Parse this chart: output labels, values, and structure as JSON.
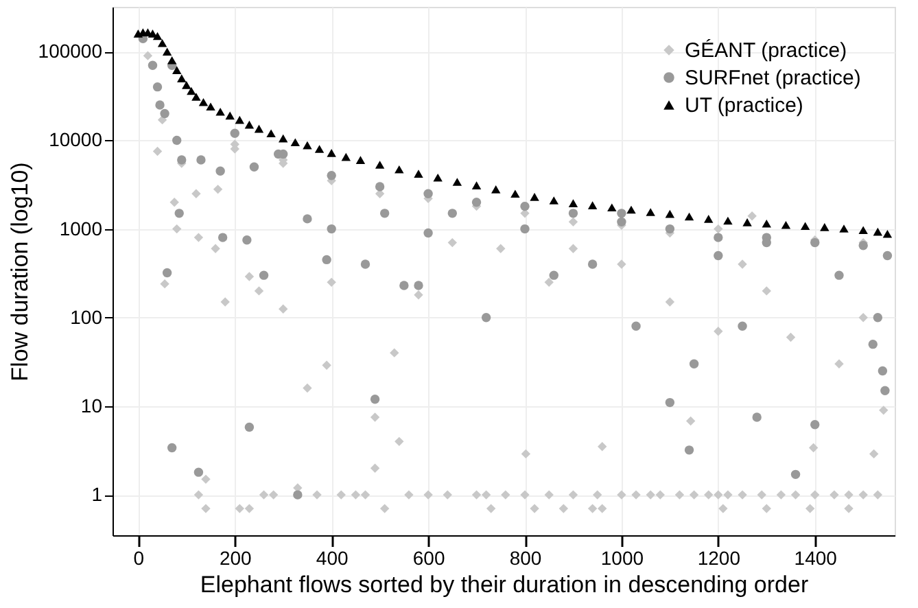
{
  "chart_data": {
    "type": "scatter",
    "xlabel": "Elephant flows sorted by their duration in descending order",
    "ylabel": "Flow duration (log10)",
    "log": "y",
    "grid": true,
    "legend": "top right",
    "xlim": [
      -53,
      1565
    ],
    "xticks": [
      0,
      200,
      400,
      600,
      800,
      1000,
      1200,
      1400
    ],
    "ylim": [
      0.35,
      320000
    ],
    "yticks": [
      1,
      10,
      100,
      1000,
      10000,
      100000
    ],
    "series": [
      {
        "name": "GÉANT (practice)",
        "color": "#c8c8c8",
        "marker": "diamond",
        "x": [
          20,
          40,
          50,
          55,
          75,
          80,
          90,
          120,
          125,
          125,
          140,
          140,
          160,
          165,
          180,
          200,
          210,
          230,
          230,
          250,
          260,
          280,
          300,
          300,
          330,
          350,
          370,
          390,
          400,
          420,
          450,
          470,
          490,
          490,
          510,
          530,
          540,
          560,
          580,
          600,
          640,
          650,
          700,
          720,
          730,
          750,
          760,
          800,
          802,
          820,
          850,
          850,
          880,
          900,
          900,
          940,
          950,
          960,
          960,
          1000,
          1000,
          1030,
          1060,
          1080,
          1100,
          1120,
          1143,
          1150,
          1180,
          1200,
          1200,
          1210,
          1220,
          1250,
          1250,
          1270,
          1290,
          1300,
          1300,
          1330,
          1350,
          1360,
          1390,
          1397,
          1400,
          1440,
          1450,
          1470,
          1470,
          1500,
          1500,
          1522,
          1530,
          1542,
          200,
          300,
          400,
          500,
          600,
          700,
          800,
          900,
          1000,
          1100,
          1200,
          1400,
          1500
        ],
        "values": [
          90000,
          7500,
          17000,
          240,
          2000,
          1000,
          5500,
          2500,
          800,
          1,
          0.7,
          1.5,
          600,
          2800,
          150,
          8000,
          0.7,
          0.7,
          290,
          200,
          1,
          1,
          125,
          5500,
          1.2,
          16,
          1,
          29,
          250,
          1,
          1,
          1,
          7.5,
          2,
          0.7,
          40,
          4,
          1,
          180,
          1,
          1,
          700,
          1,
          1,
          0.7,
          600,
          1,
          1,
          2.9,
          0.7,
          1,
          250,
          0.7,
          1,
          600,
          0.7,
          1,
          0.7,
          3.5,
          1,
          400,
          1,
          1,
          1,
          150,
          1,
          6.8,
          1,
          1,
          1,
          70,
          0.7,
          1,
          1,
          400,
          1400,
          1,
          0.7,
          200,
          1,
          60,
          1,
          0.7,
          3.4,
          1,
          1,
          30,
          1,
          0.7,
          1,
          100,
          2.9,
          1,
          9,
          9000,
          6000,
          3500,
          2500,
          2200,
          1800,
          1500,
          1200,
          1100,
          900,
          1000,
          750,
          700
        ]
      },
      {
        "name": "SURFnet (practice)",
        "color": "#999999",
        "marker": "circle",
        "x": [
          10,
          30,
          40,
          45,
          55,
          60,
          70,
          70,
          80,
          85,
          90,
          125,
          130,
          170,
          175,
          225,
          230,
          240,
          260,
          290,
          330,
          350,
          390,
          400,
          470,
          490,
          510,
          550,
          580,
          600,
          650,
          720,
          800,
          860,
          940,
          1000,
          1030,
          1100,
          1140,
          1150,
          1200,
          1250,
          1280,
          1300,
          1360,
          1400,
          1450,
          1520,
          1530,
          1540,
          1545,
          1550,
          200,
          300,
          400,
          500,
          600,
          700,
          800,
          900,
          1000,
          1100,
          1200,
          1300,
          1400,
          1500
        ],
        "values": [
          140000,
          70000,
          40000,
          25000,
          20000,
          320,
          3.4,
          70000,
          10000,
          1500,
          6000,
          1.8,
          6000,
          4500,
          800,
          750,
          5.8,
          5000,
          300,
          7000,
          1,
          1300,
          450,
          1000,
          400,
          12,
          1500,
          230,
          230,
          900,
          1500,
          100,
          1000,
          300,
          400,
          1500,
          80,
          11,
          3.2,
          30,
          500,
          80,
          7.5,
          800,
          1.7,
          6.2,
          300,
          50,
          100,
          25,
          15,
          500,
          12000,
          7000,
          4000,
          3000,
          2500,
          2000,
          1800,
          1500,
          1200,
          1000,
          800,
          700,
          700,
          650
        ]
      },
      {
        "name": "UT (practice)",
        "color": "#000000",
        "marker": "triangle",
        "x": [
          0,
          10,
          20,
          30,
          40,
          50,
          60,
          70,
          80,
          90,
          100,
          110,
          120,
          135,
          150,
          170,
          190,
          210,
          230,
          250,
          275,
          300,
          325,
          350,
          375,
          400,
          430,
          460,
          500,
          540,
          580,
          620,
          660,
          700,
          740,
          780,
          820,
          860,
          900,
          940,
          980,
          1020,
          1060,
          1100,
          1140,
          1180,
          1220,
          1260,
          1300,
          1340,
          1380,
          1420,
          1460,
          1500,
          1530,
          1550
        ],
        "values": [
          160000,
          165000,
          165000,
          160000,
          150000,
          125000,
          100000,
          80000,
          62000,
          50000,
          42000,
          36000,
          31000,
          27000,
          24000,
          21000,
          19000,
          17000,
          15000,
          13500,
          12000,
          10500,
          9500,
          8800,
          8000,
          7200,
          6500,
          6000,
          5300,
          4700,
          4200,
          3800,
          3400,
          3100,
          2800,
          2500,
          2300,
          2100,
          1950,
          1850,
          1750,
          1650,
          1550,
          1480,
          1380,
          1300,
          1240,
          1190,
          1150,
          1110,
          1080,
          1050,
          1010,
          970,
          930,
          880
        ]
      }
    ]
  }
}
